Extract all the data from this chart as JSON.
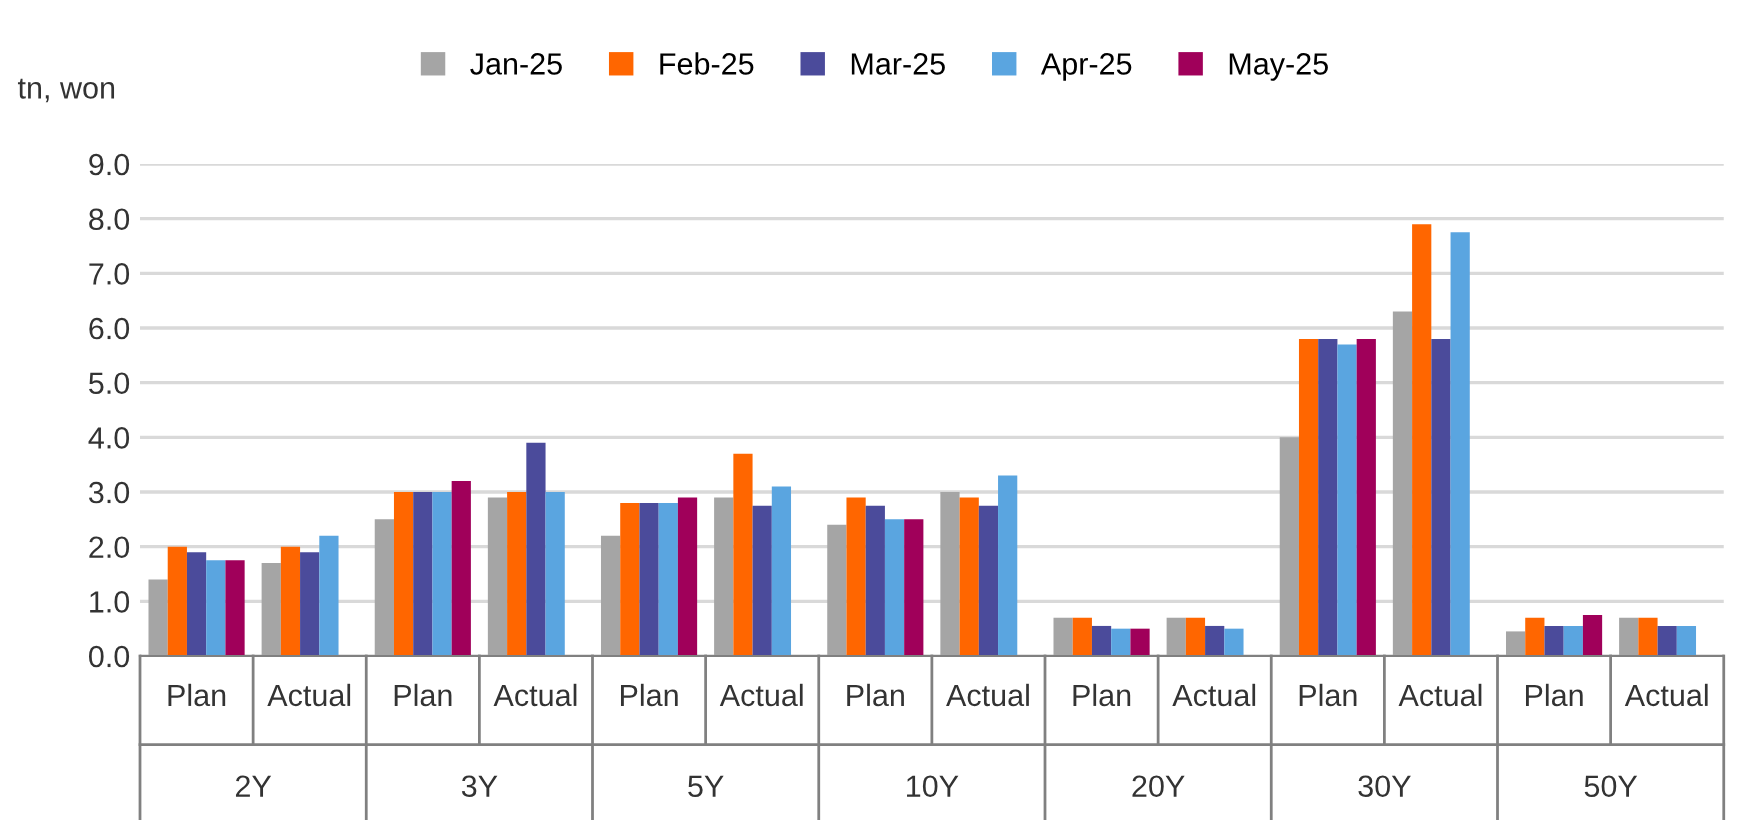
{
  "chart_data": {
    "type": "bar",
    "ylabel": "tn, won",
    "categories": [
      "Plan",
      "Actual",
      "Plan",
      "Actual",
      "Plan",
      "Actual",
      "Plan",
      "Actual",
      "Plan",
      "Actual",
      "Plan",
      "Actual",
      "Plan",
      "Actual"
    ],
    "annotations": [
      "2Y",
      "3Y",
      "5Y",
      "10Y",
      "20Y",
      "30Y",
      "50Y"
    ],
    "series": [
      {
        "name": "Jan-25",
        "color": "#a5a5a5",
        "values": [
          1.4,
          1.7,
          2.5,
          2.9,
          2.2,
          2.9,
          2.4,
          3.0,
          0.7,
          0.7,
          4.0,
          6.3,
          0.45,
          0.7
        ]
      },
      {
        "name": "Feb-25",
        "color": "#ff6600",
        "values": [
          2.0,
          2.0,
          3.0,
          3.0,
          2.8,
          3.7,
          2.9,
          2.9,
          0.7,
          0.7,
          5.8,
          7.9,
          0.7,
          0.7
        ]
      },
      {
        "name": "Mar-25",
        "color": "#4b4b9b",
        "values": [
          1.9,
          1.9,
          3.0,
          3.9,
          2.8,
          2.75,
          2.75,
          2.75,
          0.55,
          0.55,
          5.8,
          5.8,
          0.55,
          0.55
        ]
      },
      {
        "name": "Apr-25",
        "color": "#5aa5e0",
        "values": [
          1.75,
          2.2,
          3.0,
          3.0,
          2.8,
          3.1,
          2.5,
          3.3,
          0.5,
          0.5,
          5.7,
          7.75,
          0.55,
          0.55
        ]
      },
      {
        "name": "May-25",
        "color": "#a0005a",
        "values": [
          1.75,
          null,
          3.2,
          null,
          2.9,
          null,
          2.5,
          null,
          0.5,
          null,
          5.8,
          null,
          0.75,
          null
        ]
      }
    ],
    "ylim": [
      0,
      9
    ],
    "yticks": [
      {
        "value": 0,
        "label": "0.0"
      },
      {
        "value": 1,
        "label": "1.0"
      },
      {
        "value": 2,
        "label": "2.0"
      },
      {
        "value": 3,
        "label": "3.0"
      },
      {
        "value": 4,
        "label": "4.0"
      },
      {
        "value": 5,
        "label": "5.0"
      },
      {
        "value": 6,
        "label": "6.0"
      },
      {
        "value": 7,
        "label": "7.0"
      },
      {
        "value": 8,
        "label": "8.0"
      },
      {
        "value": 9,
        "label": "9.0"
      }
    ],
    "grid": "y",
    "legend": "top"
  }
}
